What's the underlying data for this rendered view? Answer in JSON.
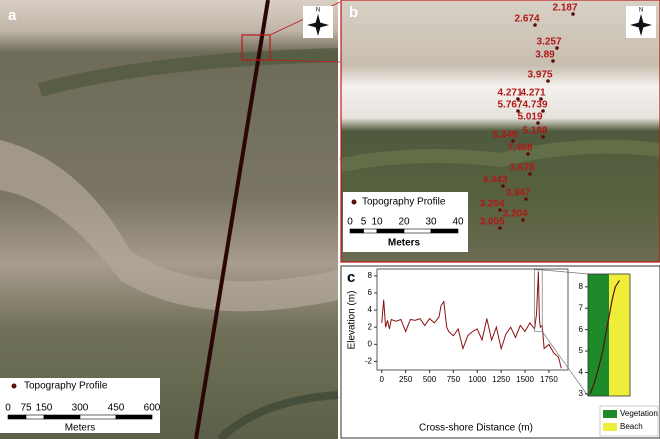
{
  "panel_a": {
    "label": "a",
    "north": "N",
    "legend": "Topography Profile",
    "scale_ticks": [
      0,
      75,
      150,
      300,
      450,
      600
    ],
    "scale_unit": "Meters"
  },
  "panel_b": {
    "label": "b",
    "north": "N",
    "legend": "Topography Profile",
    "scale_ticks": [
      0,
      5,
      10,
      20,
      30,
      40
    ],
    "scale_unit": "Meters",
    "point_labels": [
      "2.187",
      "2.674",
      "3.257",
      "3.89",
      "3.975",
      "4.271",
      "4.271",
      "5.767",
      "4.739",
      "5.019",
      "6.248",
      "5.188",
      "7.468",
      "3.678",
      "4.443",
      "3.947",
      "3.204",
      "3.204",
      "3.055"
    ]
  },
  "panel_c": {
    "label": "c"
  },
  "chart_data": [
    {
      "type": "line",
      "xlabel": "Cross-shore Distance (m)",
      "ylabel": "Elevation (m)",
      "x": [
        0,
        20,
        40,
        60,
        80,
        100,
        150,
        200,
        250,
        300,
        350,
        400,
        450,
        500,
        550,
        600,
        620,
        650,
        680,
        700,
        750,
        800,
        850,
        900,
        950,
        1000,
        1050,
        1100,
        1150,
        1200,
        1250,
        1300,
        1350,
        1400,
        1450,
        1500,
        1550,
        1600,
        1620,
        1640,
        1650,
        1660,
        1680,
        1700,
        1750,
        1800,
        1850,
        1880
      ],
      "series": [
        {
          "color": "#8b1010",
          "values": [
            2.5,
            5.2,
            2.0,
            2.8,
            1.8,
            2.9,
            2.7,
            2.9,
            1.5,
            2.9,
            2.8,
            3.0,
            2.2,
            3.0,
            2.5,
            3.2,
            4.5,
            5.0,
            2.0,
            1.5,
            1.0,
            1.8,
            -0.5,
            1.0,
            1.5,
            1.8,
            0.5,
            3.0,
            0.5,
            2.0,
            -0.5,
            1.2,
            2.0,
            0.8,
            2.2,
            1.5,
            2.5,
            1.8,
            3.5,
            8.5,
            3.0,
            2.0,
            2.2,
            -0.5,
            0.0,
            -1.0,
            -1.5,
            -2.8
          ]
        }
      ],
      "xlim": [
        -50,
        1950
      ],
      "ylim": [
        -3,
        8.8
      ],
      "xticks": [
        0,
        250,
        500,
        750,
        1000,
        1250,
        1500,
        1750
      ],
      "yticks": [
        -2,
        0,
        2,
        4,
        6,
        8
      ]
    },
    {
      "type": "line",
      "x": [
        1622,
        1626,
        1630,
        1634,
        1637,
        1640,
        1643,
        1646,
        1650
      ],
      "series": [
        {
          "color": "#5a1010",
          "values": [
            3.0,
            3.5,
            4.2,
            5.0,
            5.8,
            6.6,
            7.4,
            8.0,
            8.3
          ]
        }
      ],
      "xlim": [
        1620,
        1660
      ],
      "ylim": [
        2.9,
        8.6
      ],
      "yticks": [
        3,
        4,
        5,
        6,
        7,
        8
      ],
      "zones": [
        {
          "name": "Vegetation",
          "color": "#1e8a2a"
        },
        {
          "name": "Beach",
          "color": "#eeee3a"
        }
      ]
    }
  ]
}
